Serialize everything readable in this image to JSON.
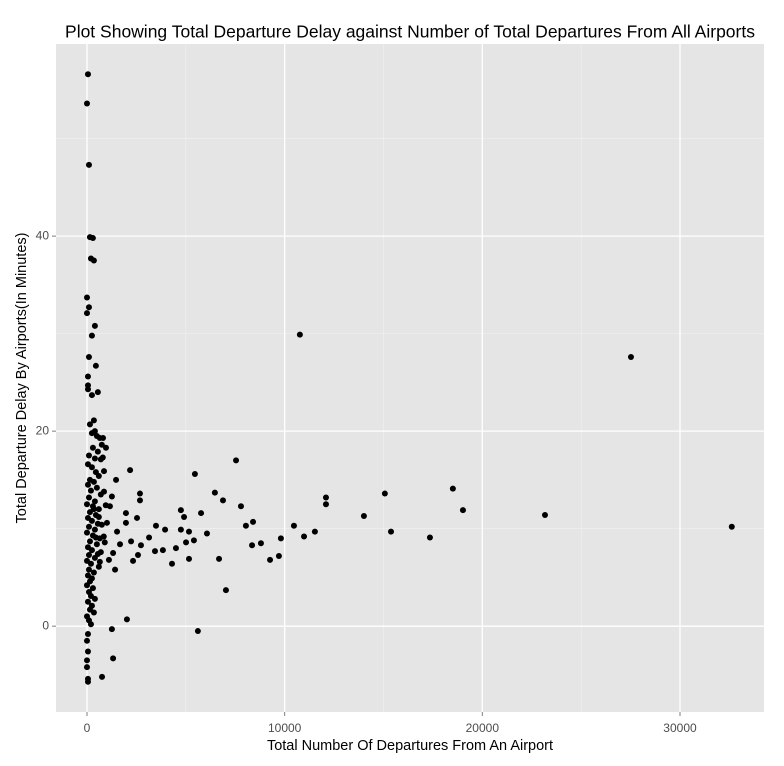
{
  "chart_data": {
    "type": "scatter",
    "title": "Plot Showing Total Departure Delay against Number of Total Departures From All Airports",
    "x_label": "Total Number Of Departures From An Airport",
    "y_label": "Total Departure Delay By Airports(In Minutes)",
    "color": "#000000",
    "grid": true,
    "xlim": [
      -1568,
      34250
    ],
    "ylim": [
      -8.8,
      59.7
    ],
    "xticks": [
      0,
      10000,
      20000,
      30000
    ],
    "yticks": [
      0,
      20,
      40
    ],
    "x": [
      50,
      0,
      100,
      150,
      300,
      200,
      350,
      0,
      100,
      0,
      400,
      250,
      100,
      450,
      50,
      50,
      50,
      550,
      250,
      350,
      150,
      400,
      500,
      250,
      650,
      750,
      300,
      550,
      100,
      400,
      700,
      800,
      50,
      250,
      450,
      600,
      150,
      350,
      50,
      500,
      200,
      700,
      100,
      400,
      0,
      300,
      600,
      150,
      450,
      50,
      250,
      550,
      100,
      400,
      0,
      300,
      650,
      150,
      500,
      50,
      250,
      700,
      100,
      400,
      0,
      200,
      600,
      100,
      350,
      50,
      250,
      150,
      0,
      300,
      100,
      200,
      400,
      50,
      250,
      150,
      350,
      0,
      100,
      200,
      50,
      0,
      50,
      0,
      0,
      50,
      50,
      600,
      750,
      850,
      900,
      950,
      350,
      450,
      550,
      650,
      10770,
      27520,
      32620,
      23170,
      19020,
      18510,
      17350,
      15380,
      15070,
      14010,
      12090,
      12090,
      11530,
      10980,
      10470,
      9810,
      9710,
      9260,
      8800,
      8400,
      8350,
      8040,
      7790,
      7540,
      7030,
      6880,
      6680,
      6470,
      6070,
      5770,
      5610,
      5460,
      5410,
      5160,
      5010,
      4750,
      4910,
      4750,
      5160,
      4500,
      4300,
      3840,
      3440,
      3490,
      3950,
      3140,
      2680,
      2680,
      2730,
      2230,
      2580,
      2330,
      2530,
      2180,
      2020,
      1320,
      1260,
      760,
      1970,
      1970,
      1670,
      1520,
      1420,
      1470,
      1260,
      1160,
      1320,
      1110,
      1010,
      860,
      960,
      860,
      810
    ],
    "values": [
      56.6,
      53.6,
      47.3,
      39.9,
      39.8,
      37.7,
      37.5,
      33.7,
      32.7,
      32.1,
      30.8,
      29.8,
      27.6,
      26.7,
      25.6,
      24.7,
      24.3,
      24,
      23.7,
      21.1,
      20.7,
      20,
      19.5,
      19.8,
      19.3,
      18.6,
      18.3,
      17.9,
      17.5,
      17.2,
      17.1,
      17.3,
      16.6,
      16.3,
      15.8,
      15.4,
      15,
      14.8,
      14.5,
      14.2,
      13.9,
      13.5,
      13.2,
      12.8,
      12.5,
      12.3,
      12,
      11.7,
      11.4,
      11.1,
      10.8,
      10.5,
      10.2,
      9.9,
      9.6,
      9.3,
      9,
      8.7,
      8.4,
      8.1,
      7.8,
      7.6,
      7.3,
      7,
      6.7,
      6.4,
      6.1,
      5.8,
      5.5,
      5.2,
      4.9,
      4.6,
      4.2,
      3.9,
      3.5,
      3.1,
      2.8,
      2.5,
      2.1,
      1.7,
      1.4,
      1,
      0.6,
      0.2,
      -0.8,
      -1.5,
      -2.6,
      -3.5,
      -4.2,
      -5.4,
      -5.7,
      11.2,
      10.4,
      9.2,
      8.6,
      12.4,
      12,
      9.1,
      7.4,
      6.6,
      29.9,
      27.6,
      10.2,
      11.4,
      11.9,
      14.1,
      9.1,
      9.7,
      13.6,
      11.3,
      13.2,
      12.5,
      9.7,
      9.2,
      10.3,
      9,
      7.2,
      6.8,
      8.5,
      10.7,
      8.3,
      10.3,
      12.3,
      17,
      3.7,
      12.9,
      6.9,
      13.7,
      9.5,
      11.6,
      -0.5,
      15.6,
      8.8,
      6.9,
      8.6,
      9.9,
      11.2,
      11.9,
      9.7,
      8,
      6.4,
      7.8,
      7.7,
      10.3,
      9.9,
      9.1,
      13.6,
      12.9,
      8.3,
      8.7,
      7.3,
      6.7,
      11.1,
      16,
      0.7,
      -3.3,
      -0.3,
      -5.2,
      11.6,
      10.6,
      8.4,
      9.7,
      5.8,
      15,
      13.3,
      12.3,
      7.5,
      6.8,
      10.6,
      13.8,
      18.3,
      15.9,
      19.3
    ]
  }
}
